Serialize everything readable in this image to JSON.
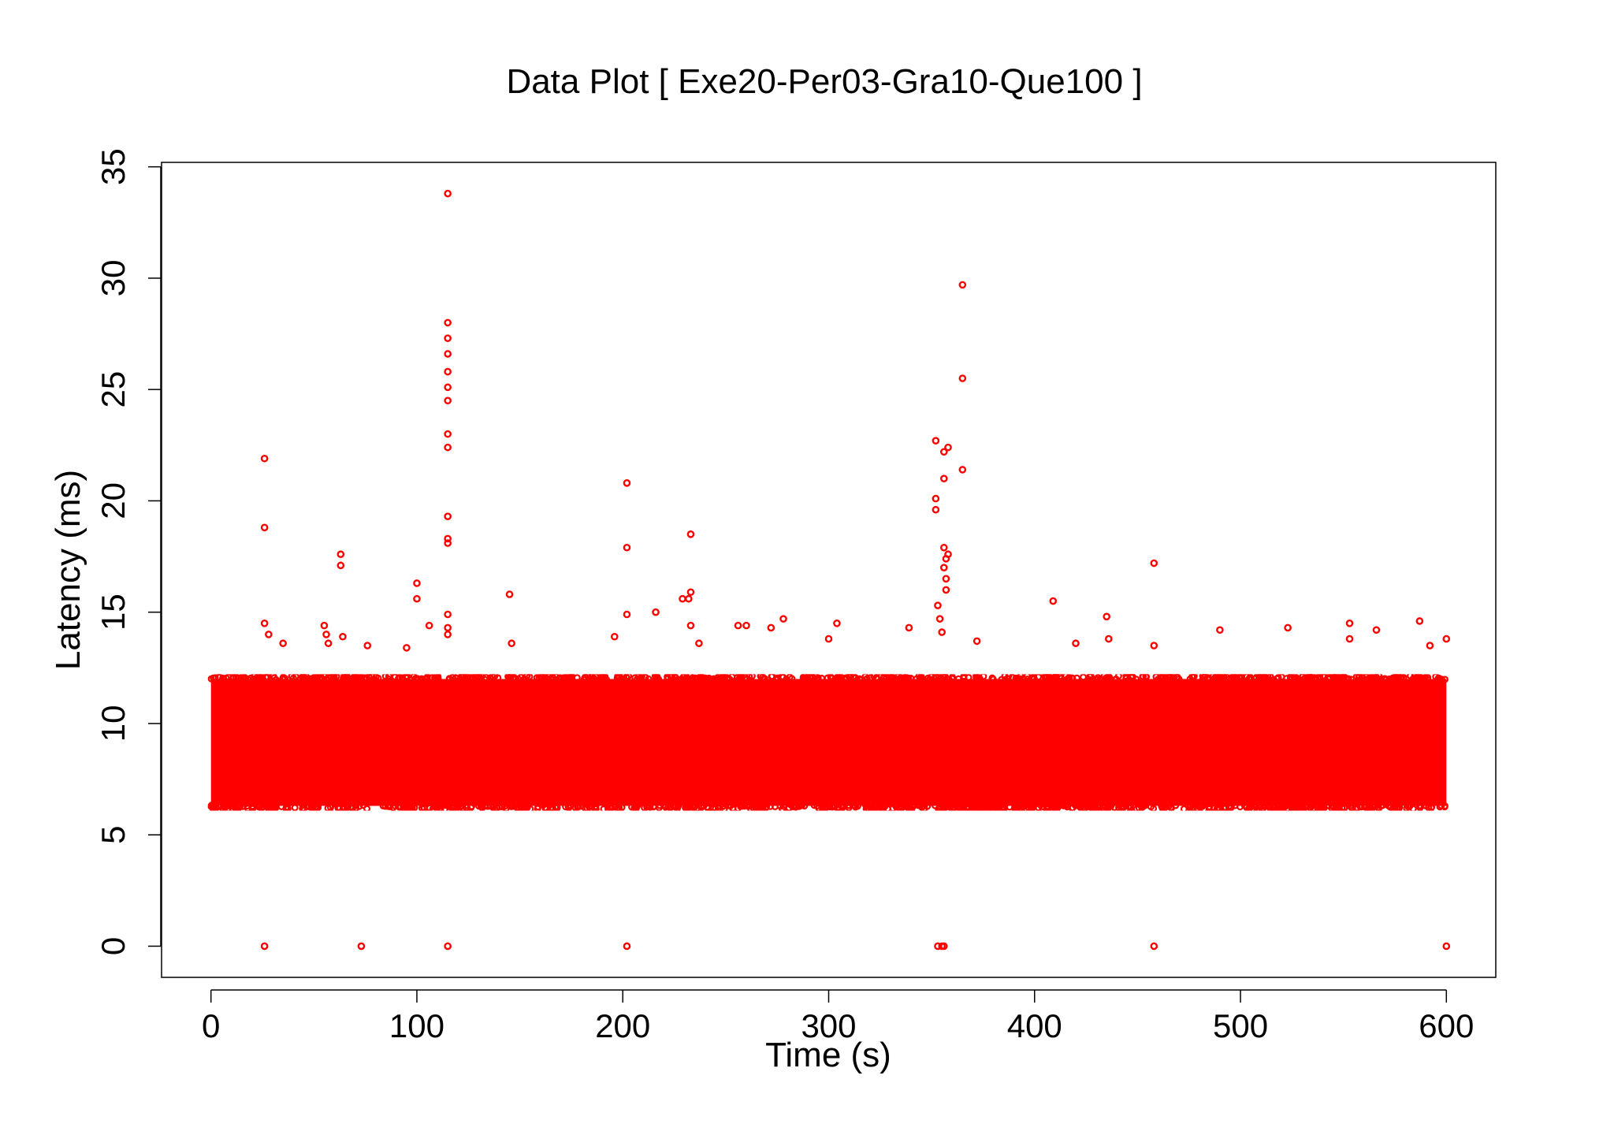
{
  "chart_data": {
    "type": "scatter",
    "title": "Data Plot [ Exe20-Per03-Gra10-Que100 ]",
    "xlabel": "Time (s)",
    "ylabel": "Latency (ms)",
    "xlim": [
      -24,
      624
    ],
    "ylim": [
      -1.4,
      35.2
    ],
    "x_ticks": [
      0,
      100,
      200,
      300,
      400,
      500,
      600
    ],
    "y_ticks": [
      0,
      5,
      10,
      15,
      20,
      25,
      30,
      35
    ],
    "grid": false,
    "legend": "none",
    "marker": "open-circle",
    "color": "#ff0000",
    "dense_band": {
      "x_range": [
        0,
        600
      ],
      "y_range": [
        6.3,
        12.0
      ]
    },
    "series": [
      {
        "points": [
          [
            26,
            21.9
          ],
          [
            26,
            18.8
          ],
          [
            26,
            14.5
          ],
          [
            28,
            14.0
          ],
          [
            35,
            13.6
          ],
          [
            55,
            14.4
          ],
          [
            56,
            14.0
          ],
          [
            57,
            13.6
          ],
          [
            63,
            17.6
          ],
          [
            63,
            17.1
          ],
          [
            64,
            13.9
          ],
          [
            76,
            13.5
          ],
          [
            95,
            13.4
          ],
          [
            100,
            16.3
          ],
          [
            100,
            15.6
          ],
          [
            106,
            14.4
          ],
          [
            115,
            33.8
          ],
          [
            115,
            28.0
          ],
          [
            115,
            27.3
          ],
          [
            115,
            26.6
          ],
          [
            115,
            25.8
          ],
          [
            115,
            25.1
          ],
          [
            115,
            24.5
          ],
          [
            115,
            23.0
          ],
          [
            115,
            22.4
          ],
          [
            115,
            19.3
          ],
          [
            115,
            18.3
          ],
          [
            115,
            18.1
          ],
          [
            115,
            14.9
          ],
          [
            115,
            14.3
          ],
          [
            115,
            14.0
          ],
          [
            145,
            15.8
          ],
          [
            146,
            13.6
          ],
          [
            196,
            13.9
          ],
          [
            202,
            20.8
          ],
          [
            202,
            17.9
          ],
          [
            202,
            14.9
          ],
          [
            216,
            15.0
          ],
          [
            229,
            15.6
          ],
          [
            232,
            15.6
          ],
          [
            233,
            18.5
          ],
          [
            233,
            15.9
          ],
          [
            233,
            14.4
          ],
          [
            237,
            13.6
          ],
          [
            256,
            14.4
          ],
          [
            260,
            14.4
          ],
          [
            272,
            14.3
          ],
          [
            278,
            14.7
          ],
          [
            300,
            13.8
          ],
          [
            304,
            14.5
          ],
          [
            339,
            14.3
          ],
          [
            352,
            22.7
          ],
          [
            352,
            20.1
          ],
          [
            352,
            19.6
          ],
          [
            353,
            15.3
          ],
          [
            354,
            14.7
          ],
          [
            355,
            14.1
          ],
          [
            356,
            22.2
          ],
          [
            356,
            21.0
          ],
          [
            356,
            17.9
          ],
          [
            357,
            17.4
          ],
          [
            356,
            17.0
          ],
          [
            357,
            16.5
          ],
          [
            357,
            16.0
          ],
          [
            358,
            22.4
          ],
          [
            358,
            17.6
          ],
          [
            365,
            29.7
          ],
          [
            365,
            25.5
          ],
          [
            365,
            21.4
          ],
          [
            372,
            13.7
          ],
          [
            409,
            15.5
          ],
          [
            420,
            13.6
          ],
          [
            435,
            14.8
          ],
          [
            436,
            13.8
          ],
          [
            458,
            17.2
          ],
          [
            458,
            13.5
          ],
          [
            490,
            14.2
          ],
          [
            523,
            14.3
          ],
          [
            553,
            14.5
          ],
          [
            553,
            13.8
          ],
          [
            566,
            14.2
          ],
          [
            587,
            14.6
          ],
          [
            592,
            13.5
          ],
          [
            600,
            13.8
          ],
          [
            26,
            0
          ],
          [
            73,
            0
          ],
          [
            115,
            0
          ],
          [
            202,
            0
          ],
          [
            353,
            0
          ],
          [
            355,
            0
          ],
          [
            356,
            0
          ],
          [
            458,
            0
          ],
          [
            600,
            0
          ]
        ]
      }
    ]
  }
}
